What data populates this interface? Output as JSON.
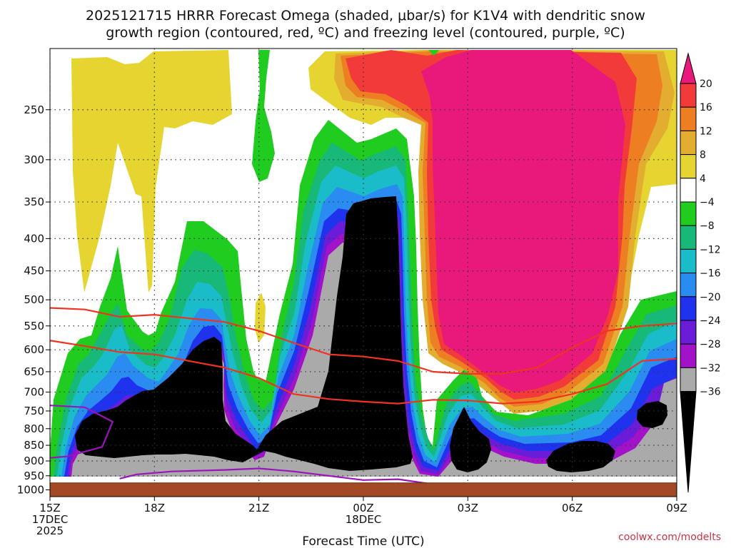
{
  "chart_data": {
    "type": "heatmap",
    "title": "2025121715 HRRR Forecast Omega (shaded, μbar/s) for K1V4 with dendritic snow",
    "subtitle": "growth region (contoured, red, ºC) and freezing level (contoured, purple, ºC)",
    "xlabel": "Forecast Time (UTC)",
    "ylabel": "",
    "credit": "coolwx.com/modelts",
    "x_axis": {
      "range_hours_from_15Z": [
        0,
        18
      ],
      "ticks": [
        {
          "hour": 0,
          "lines": [
            "15Z",
            "17DEC",
            "2025"
          ]
        },
        {
          "hour": 3,
          "lines": [
            "18Z"
          ]
        },
        {
          "hour": 6,
          "lines": [
            "21Z"
          ]
        },
        {
          "hour": 9,
          "lines": [
            "00Z",
            "18DEC"
          ]
        },
        {
          "hour": 12,
          "lines": [
            "03Z"
          ]
        },
        {
          "hour": 15,
          "lines": [
            "06Z"
          ]
        },
        {
          "hour": 18,
          "lines": [
            "09Z"
          ]
        }
      ]
    },
    "y_axis": {
      "scale": "log",
      "inverted": true,
      "range_hPa": [
        1025,
        200
      ],
      "ticks": [
        250,
        300,
        350,
        400,
        450,
        500,
        550,
        600,
        650,
        700,
        750,
        800,
        850,
        900,
        950,
        1000
      ]
    },
    "grid": true,
    "surface_pressure_hPa": 975,
    "colorbar": {
      "labels": [
        "20",
        "16",
        "12",
        "8",
        "4",
        "−4",
        "−8",
        "−12",
        "−16",
        "−20",
        "−24",
        "−28",
        "−32",
        "−36"
      ],
      "bands": [
        {
          "from": 20,
          "to": 99,
          "color": "#e8197a"
        },
        {
          "from": 16,
          "to": 20,
          "color": "#f23a3a"
        },
        {
          "from": 12,
          "to": 16,
          "color": "#ee7e22"
        },
        {
          "from": 8,
          "to": 12,
          "color": "#e3ad30"
        },
        {
          "from": 4,
          "to": 8,
          "color": "#e6d530"
        },
        {
          "from": -4,
          "to": 4,
          "color": "#ffffff"
        },
        {
          "from": -8,
          "to": -4,
          "color": "#1fcc1f"
        },
        {
          "from": -12,
          "to": -8,
          "color": "#18b878"
        },
        {
          "from": -16,
          "to": -12,
          "color": "#19bcc8"
        },
        {
          "from": -20,
          "to": -16,
          "color": "#2a8cf0"
        },
        {
          "from": -24,
          "to": -20,
          "color": "#1f32ee"
        },
        {
          "from": -28,
          "to": -24,
          "color": "#6a1cd8"
        },
        {
          "from": -32,
          "to": -28,
          "color": "#a212c8"
        },
        {
          "from": -36,
          "to": -32,
          "color": "#aaaaaa"
        },
        {
          "from": -99,
          "to": -36,
          "color": "#000000"
        }
      ]
    },
    "dgz_lines_color": "#ee3322",
    "freezing_level_color": "#9914bb",
    "ground_color": "#a24a25",
    "dgz_upper_hPa": [
      [
        0,
        515
      ],
      [
        1,
        518
      ],
      [
        2,
        532
      ],
      [
        3,
        528
      ],
      [
        4,
        535
      ],
      [
        5,
        542
      ],
      [
        6,
        560
      ],
      [
        7,
        585
      ],
      [
        8,
        610
      ],
      [
        9,
        615
      ],
      [
        10,
        625
      ],
      [
        11,
        650
      ],
      [
        12,
        655
      ],
      [
        13,
        655
      ],
      [
        14,
        640
      ],
      [
        15,
        595
      ],
      [
        16,
        560
      ],
      [
        17,
        550
      ],
      [
        18,
        545
      ]
    ],
    "dgz_lower_hPa": [
      [
        0,
        580
      ],
      [
        1,
        592
      ],
      [
        2,
        605
      ],
      [
        3,
        610
      ],
      [
        4,
        625
      ],
      [
        5,
        640
      ],
      [
        6,
        665
      ],
      [
        7,
        705
      ],
      [
        8,
        718
      ],
      [
        9,
        725
      ],
      [
        10,
        730
      ],
      [
        11,
        720
      ],
      [
        12,
        722
      ],
      [
        13,
        730
      ],
      [
        14,
        725
      ],
      [
        15,
        705
      ],
      [
        16,
        680
      ],
      [
        17,
        625
      ],
      [
        18,
        620
      ]
    ],
    "freezing_level_hPa": [
      [
        0,
        735
      ],
      [
        1,
        740
      ],
      [
        1.8,
        780
      ],
      [
        1.5,
        855
      ],
      [
        0.5,
        885
      ],
      [
        0,
        890
      ],
      null,
      [
        2,
        960
      ],
      [
        2.5,
        945
      ],
      [
        3.5,
        935
      ],
      [
        5,
        930
      ],
      [
        6,
        925
      ],
      [
        7,
        935
      ],
      [
        8,
        950
      ],
      [
        9,
        965
      ],
      [
        10,
        962
      ],
      [
        11,
        980
      ],
      [
        11.5,
        985
      ]
    ]
  }
}
